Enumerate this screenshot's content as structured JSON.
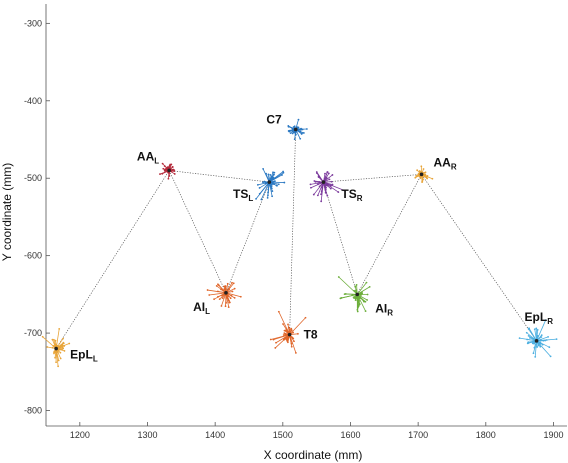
{
  "chart_data": {
    "type": "scatter",
    "title": "",
    "xlabel": "X coordinate (mm)",
    "ylabel": "Y coordinate (mm)",
    "xlim": [
      1150,
      1920
    ],
    "ylim": [
      -820,
      -275
    ],
    "x_ticks": [
      1200,
      1300,
      1400,
      1500,
      1600,
      1700,
      1800,
      1900
    ],
    "y_ticks": [
      -300,
      -400,
      -500,
      -600,
      -700,
      -800
    ],
    "grid": false,
    "landmarks": [
      {
        "id": "C7",
        "label": "C7",
        "sub": "",
        "x": 1519,
        "y": -437,
        "color": "#2a78c2",
        "spread": 8,
        "label_dx": -14,
        "label_dy": -6,
        "anchor": "end"
      },
      {
        "id": "T8",
        "label": "T8",
        "sub": "",
        "x": 1510,
        "y": -702,
        "color": "#e0662a",
        "spread": 14,
        "label_dx": 14,
        "label_dy": 4,
        "anchor": "start"
      },
      {
        "id": "AA_L",
        "label": "AA",
        "sub": "L",
        "x": 1332,
        "y": -490,
        "color": "#b52b3c",
        "spread": 7,
        "label_dx": -10,
        "label_dy": -10,
        "anchor": "end"
      },
      {
        "id": "TS_L",
        "label": "TS",
        "sub": "L",
        "x": 1480,
        "y": -505,
        "color": "#2a78c2",
        "spread": 14,
        "label_dx": -16,
        "label_dy": 16,
        "anchor": "end"
      },
      {
        "id": "AI_L",
        "label": "AI",
        "sub": "L",
        "x": 1416,
        "y": -648,
        "color": "#e0662a",
        "spread": 14,
        "label_dx": -16,
        "label_dy": 18,
        "anchor": "end"
      },
      {
        "id": "EpL_L",
        "label": "EpL",
        "sub": "L",
        "x": 1165,
        "y": -720,
        "color": "#e8a53a",
        "spread": 12,
        "label_dx": 14,
        "label_dy": 10,
        "anchor": "start"
      },
      {
        "id": "TS_R",
        "label": "TS",
        "sub": "R",
        "x": 1560,
        "y": -505,
        "color": "#7b3a9c",
        "spread": 15,
        "label_dx": 18,
        "label_dy": 16,
        "anchor": "start"
      },
      {
        "id": "AA_R",
        "label": "AA",
        "sub": "R",
        "x": 1705,
        "y": -495,
        "color": "#e8a53a",
        "spread": 8,
        "label_dx": 12,
        "label_dy": -8,
        "anchor": "start"
      },
      {
        "id": "AI_R",
        "label": "AI",
        "sub": "R",
        "x": 1610,
        "y": -650,
        "color": "#6cae3a",
        "spread": 15,
        "label_dx": 18,
        "label_dy": 18,
        "anchor": "start"
      },
      {
        "id": "EpL_R",
        "label": "EpL",
        "sub": "R",
        "x": 1875,
        "y": -710,
        "color": "#4aaee0",
        "spread": 14,
        "label_dx": -12,
        "label_dy": -20,
        "anchor": "start"
      }
    ],
    "connections": [
      [
        "EpL_L",
        "AA_L"
      ],
      [
        "AA_L",
        "AI_L"
      ],
      [
        "AA_L",
        "TS_L"
      ],
      [
        "TS_L",
        "AI_L"
      ],
      [
        "EpL_R",
        "AA_R"
      ],
      [
        "AA_R",
        "AI_R"
      ],
      [
        "AA_R",
        "TS_R"
      ],
      [
        "TS_R",
        "AI_R"
      ],
      [
        "C7",
        "T8"
      ]
    ]
  }
}
